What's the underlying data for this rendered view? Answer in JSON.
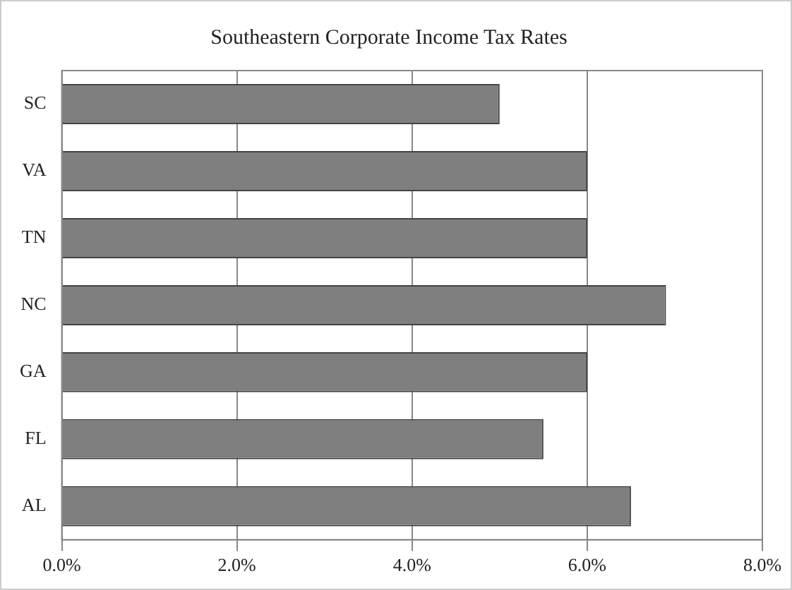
{
  "chart_data": {
    "type": "bar",
    "orientation": "horizontal",
    "title": "Southeastern Corporate Income Tax Rates",
    "categories": [
      "SC",
      "VA",
      "TN",
      "NC",
      "GA",
      "FL",
      "AL"
    ],
    "values": [
      5.0,
      6.0,
      6.0,
      6.9,
      6.0,
      5.5,
      6.5
    ],
    "color": "#7f7f7f",
    "xlim": [
      0,
      8
    ],
    "xticks": [
      {
        "value": 0,
        "label": "0.0%"
      },
      {
        "value": 2,
        "label": "2.0%"
      },
      {
        "value": 4,
        "label": "4.0%"
      },
      {
        "value": 6,
        "label": "6.0%"
      },
      {
        "value": 8,
        "label": "8.0%"
      }
    ],
    "grid": "x"
  }
}
